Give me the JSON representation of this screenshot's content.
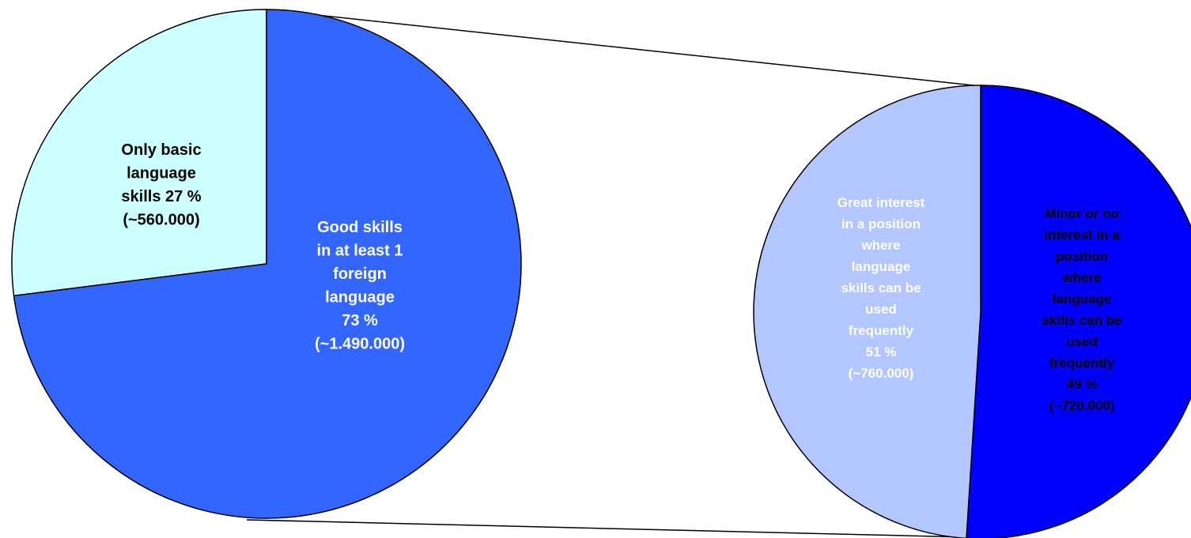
{
  "chart_data": [
    {
      "type": "pie",
      "slices": [
        {
          "label_lines": [
            "Only basic",
            "language",
            "skills 27 %",
            "(~560.000)"
          ],
          "value": 27,
          "count": "~560.000",
          "color": "#ccffff",
          "text_color": "#000000"
        },
        {
          "label_lines": [
            "Good skills",
            "in at least 1",
            "foreign",
            "language",
            "73 %",
            "(~1.490.000)"
          ],
          "value": 73,
          "count": "~1.490.000",
          "color": "#3366ff",
          "text_color": "#ffffff"
        }
      ]
    },
    {
      "type": "pie",
      "breakdown_of": "Good skills in at least 1 foreign language",
      "slices": [
        {
          "label_lines": [
            "Great interest",
            "in a position",
            "where",
            "language",
            "skills can be",
            "used",
            "frequently",
            "51 %",
            "(~760.000)"
          ],
          "value": 51,
          "count": "~760.000",
          "color": "#0000ff",
          "text_color": "#ffffff"
        },
        {
          "label_lines": [
            "Minor or no",
            "interest in a",
            "position",
            "where",
            "language",
            "skills can be",
            "used",
            "frequently",
            "49 %",
            "(~720.000)"
          ],
          "value": 49,
          "count": "~720.000",
          "color": "#b3c6ff",
          "text_color": "#000000"
        }
      ]
    }
  ]
}
